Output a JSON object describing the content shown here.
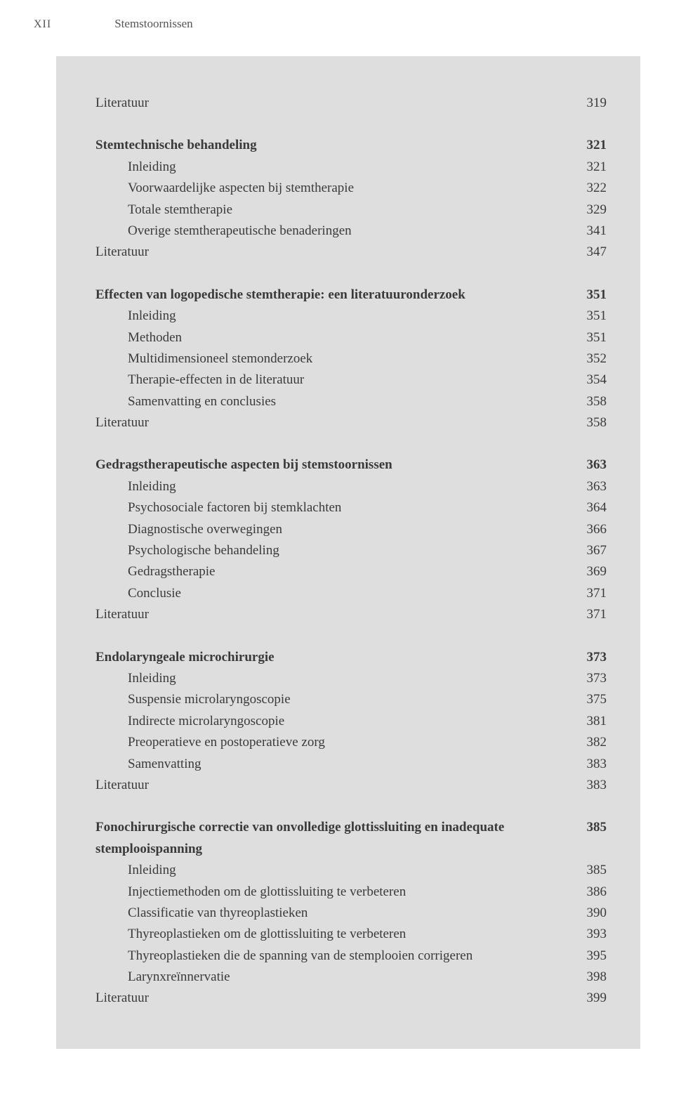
{
  "header": {
    "page_number": "XII",
    "book_title": "Stemstoornissen"
  },
  "typography": {
    "base_font_size_pt": 14,
    "text_color": "#3a3a3a",
    "box_background": "#dedede",
    "page_background": "#ffffff"
  },
  "sections": [
    {
      "lead_literature": {
        "label": "Literatuur",
        "page": "319"
      },
      "heading": {
        "label": "Stemtechnische behandeling",
        "page": "321"
      },
      "items": [
        {
          "label": "Inleiding",
          "page": "321"
        },
        {
          "label": "Voorwaardelijke aspecten bij stemtherapie",
          "page": "322"
        },
        {
          "label": "Totale stemtherapie",
          "page": "329"
        },
        {
          "label": "Overige stemtherapeutische benaderingen",
          "page": "341"
        }
      ],
      "literature": {
        "label": "Literatuur",
        "page": "347"
      }
    },
    {
      "heading": {
        "label": "Effecten van logopedische stemtherapie: een literatuur­onderzoek",
        "page": "351"
      },
      "items": [
        {
          "label": "Inleiding",
          "page": "351"
        },
        {
          "label": "Methoden",
          "page": "351"
        },
        {
          "label": "Multidimensioneel stemonderzoek",
          "page": "352"
        },
        {
          "label": "Therapie-effecten in de literatuur",
          "page": "354"
        },
        {
          "label": "Samenvatting en conclusies",
          "page": "358"
        }
      ],
      "literature": {
        "label": "Literatuur",
        "page": "358"
      }
    },
    {
      "heading": {
        "label": "Gedragstherapeutische aspecten bij stemstoornissen",
        "page": "363"
      },
      "items": [
        {
          "label": "Inleiding",
          "page": "363"
        },
        {
          "label": "Psychosociale factoren bij stemklachten",
          "page": "364"
        },
        {
          "label": "Diagnostische overwegingen",
          "page": "366"
        },
        {
          "label": "Psychologische behandeling",
          "page": "367"
        },
        {
          "label": "Gedragstherapie",
          "page": "369"
        },
        {
          "label": "Conclusie",
          "page": "371"
        }
      ],
      "literature": {
        "label": "Literatuur",
        "page": "371"
      }
    },
    {
      "heading": {
        "label": "Endolaryngeale microchirurgie",
        "page": "373"
      },
      "items": [
        {
          "label": "Inleiding",
          "page": "373"
        },
        {
          "label": "Suspensie microlaryngoscopie",
          "page": "375"
        },
        {
          "label": "Indirecte microlaryngoscopie",
          "page": "381"
        },
        {
          "label": "Preoperatieve en postoperatieve zorg",
          "page": "382"
        },
        {
          "label": "Samenvatting",
          "page": "383"
        }
      ],
      "literature": {
        "label": "Literatuur",
        "page": "383"
      }
    },
    {
      "heading": {
        "label": "Fonochirurgische correctie van onvolledige glottissluiting en inadequate stemplooispanning",
        "page": "385"
      },
      "items": [
        {
          "label": "Inleiding",
          "page": "385"
        },
        {
          "label": "Injectiemethoden om de glottissluiting te verbeteren",
          "page": "386"
        },
        {
          "label": "Classificatie van thyreoplastieken",
          "page": "390"
        },
        {
          "label": "Thyreoplastieken om de glottissluiting te verbeteren",
          "page": "393"
        },
        {
          "label": "Thyreoplastieken die de spanning van de stemplooien corrigeren",
          "page": "395"
        },
        {
          "label": "Larynxreïnnervatie",
          "page": "398"
        }
      ],
      "literature": {
        "label": "Literatuur",
        "page": "399"
      }
    }
  ]
}
